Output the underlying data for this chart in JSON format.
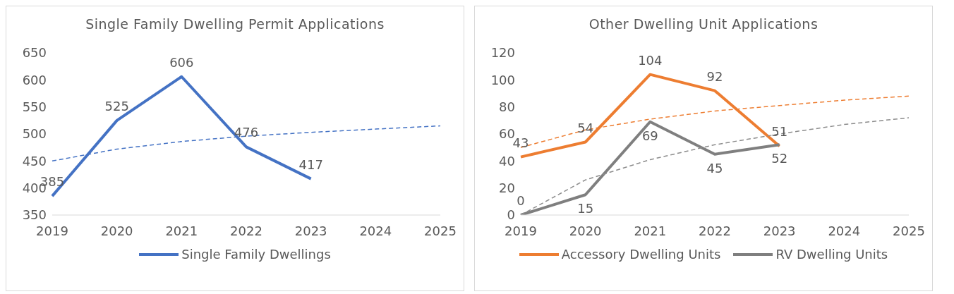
{
  "chart_data": [
    {
      "type": "line",
      "title": "Single Family Dwelling Permit Applications",
      "categories": [
        "2019",
        "2020",
        "2021",
        "2022",
        "2023",
        "2024",
        "2025"
      ],
      "ylim": [
        350,
        650
      ],
      "yticks": [
        350,
        400,
        450,
        500,
        550,
        600,
        650
      ],
      "grid": false,
      "legend": "bottom",
      "series": [
        {
          "name": "Single Family Dwellings",
          "color": "#4472c4",
          "values": [
            385,
            525,
            606,
            476,
            417,
            null,
            null
          ],
          "value_labels": [
            "385",
            "525",
            "606",
            "476",
            "417",
            null,
            null
          ]
        },
        {
          "color": "#4472c4",
          "line_style": "dashed",
          "values": [
            450,
            472,
            486,
            496,
            503,
            509,
            515
          ]
        }
      ]
    },
    {
      "type": "line",
      "title": "Other Dwelling Unit Applications",
      "categories": [
        "2019",
        "2020",
        "2021",
        "2022",
        "2023",
        "2024",
        "2025"
      ],
      "ylim": [
        0,
        120
      ],
      "yticks": [
        0,
        20,
        40,
        60,
        80,
        100,
        120
      ],
      "grid": false,
      "legend": "bottom",
      "series": [
        {
          "name": "Accessory Dwelling Units",
          "color": "#ed7d31",
          "values": [
            43,
            54,
            104,
            92,
            51,
            null,
            null
          ],
          "value_labels": [
            "43",
            "54",
            "104",
            "92",
            "51",
            null,
            null
          ]
        },
        {
          "name": "RV Dwelling Units",
          "color": "#7f7f7f",
          "values": [
            0,
            15,
            69,
            45,
            52,
            null,
            null
          ],
          "value_labels": [
            "0",
            "15",
            "69",
            "45",
            "52",
            null,
            null
          ]
        },
        {
          "color": "#ed7d31",
          "line_style": "dashed",
          "values": [
            50,
            63,
            71,
            77,
            81,
            85,
            88
          ]
        },
        {
          "color": "#8c8c8c",
          "line_style": "dashed",
          "values": [
            0,
            26,
            41,
            52,
            60,
            67,
            72
          ]
        }
      ]
    }
  ]
}
